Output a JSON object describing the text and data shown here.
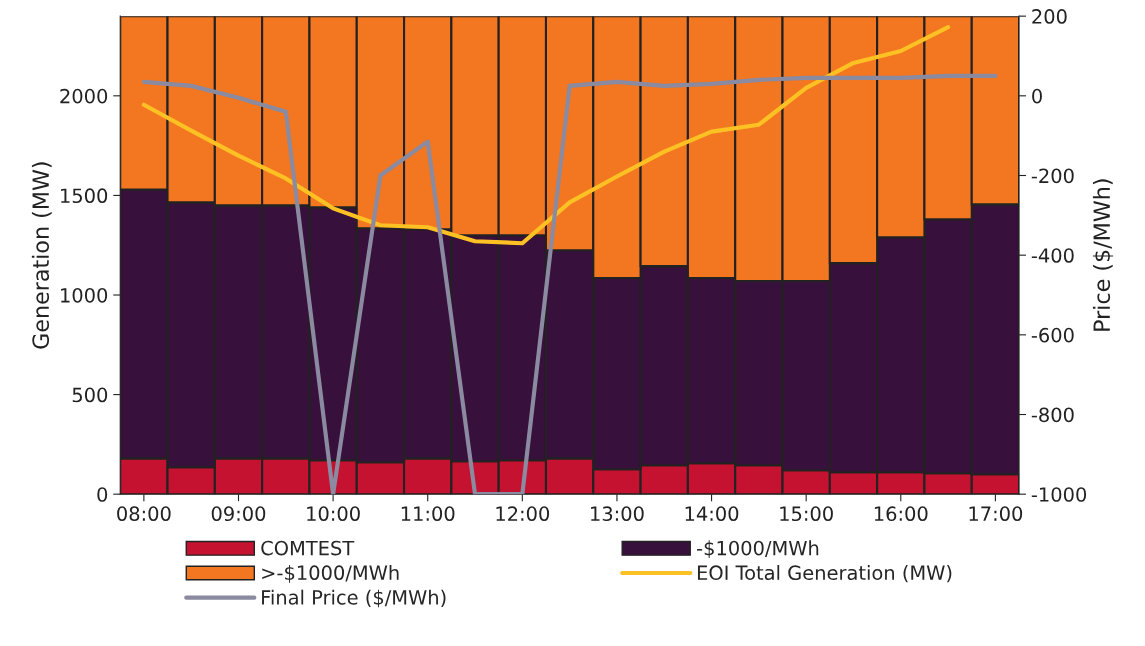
{
  "chart_data": {
    "type": "bar",
    "stacked": true,
    "ylabel": "Generation (MW)",
    "y2label": "Price ($/MWh)",
    "categories": [
      "08:00",
      null,
      "09:00",
      null,
      "10:00",
      null,
      "11:00",
      null,
      "12:00",
      null,
      "13:00",
      null,
      "14:00",
      null,
      "15:00",
      null,
      "16:00",
      null,
      "17:00"
    ],
    "ylim": [
      0,
      2400
    ],
    "yticks": [
      0,
      500,
      1000,
      1500,
      2000
    ],
    "y2lim": [
      -1000,
      200
    ],
    "y2ticks": [
      -1000,
      -800,
      -600,
      -400,
      -200,
      0,
      200
    ],
    "legend": "bottom",
    "series": [
      {
        "name": "COMTEST",
        "color": "#c41230",
        "values": [
          180,
          135,
          180,
          180,
          170,
          160,
          180,
          165,
          170,
          180,
          125,
          145,
          155,
          145,
          120,
          110,
          110,
          105,
          100
        ]
      },
      {
        "name": "-$1000/MWh",
        "color": "#38103c",
        "values": [
          1350,
          1330,
          1270,
          1270,
          1270,
          1175,
          1150,
          1135,
          1130,
          1045,
          960,
          1000,
          930,
          925,
          950,
          1050,
          1180,
          1275,
          1355
        ]
      },
      {
        "name": ">-$1000/MWh",
        "color": "#f37621",
        "values": [
          870,
          935,
          950,
          950,
          960,
          1065,
          1070,
          1100,
          1100,
          1175,
          1315,
          1255,
          1315,
          1330,
          1330,
          1240,
          1110,
          1020,
          945
        ]
      },
      {
        "name": "EOI Total Generation (MW)",
        "type": "line",
        "color": "#fec123",
        "values": [
          1955,
          1825,
          1700,
          1585,
          1435,
          1350,
          1340,
          1270,
          1260,
          1465,
          1595,
          1720,
          1820,
          1855,
          2040,
          2165,
          2225,
          2345,
          null
        ]
      },
      {
        "name": "Final Price ($/MWh)",
        "type": "line",
        "axis": "y2",
        "color": "#8a8aa0",
        "values": [
          35,
          25,
          -5,
          -40,
          -1000,
          -200,
          -115,
          -1000,
          -1000,
          25,
          35,
          25,
          30,
          40,
          45,
          45,
          45,
          50,
          50
        ]
      }
    ]
  }
}
